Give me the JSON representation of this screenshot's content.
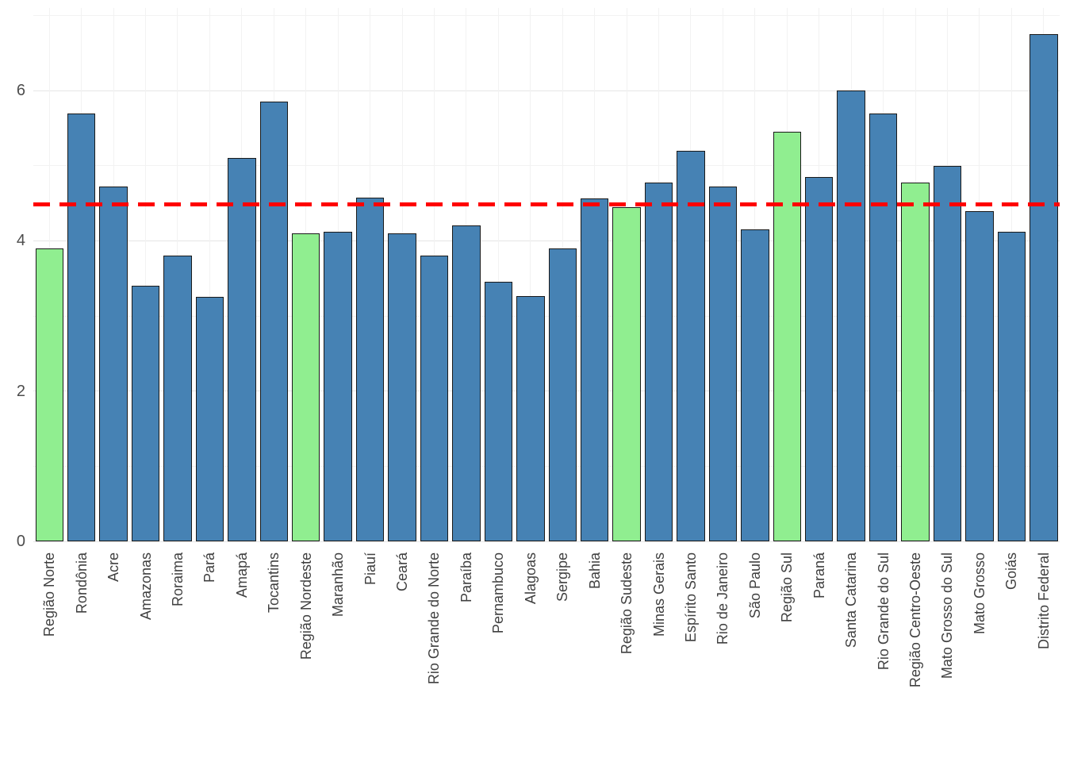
{
  "chart_data": {
    "type": "bar",
    "title": "",
    "xlabel": "",
    "ylabel": "",
    "categories": [
      "Região Norte",
      "Rondônia",
      "Acre",
      "Amazonas",
      "Roraima",
      "Pará",
      "Amapá",
      "Tocantins",
      "Região Nordeste",
      "Maranhão",
      "Piauí",
      "Ceará",
      "Rio Grande do Norte",
      "Paraíba",
      "Pernambuco",
      "Alagoas",
      "Sergipe",
      "Bahia",
      "Região Sudeste",
      "Minas Gerais",
      "Espírito Santo",
      "Rio de Janeiro",
      "São Paulo",
      "Região Sul",
      "Paraná",
      "Santa Catarina",
      "Rio Grande do Sul",
      "Região Centro-Oeste",
      "Mato Grosso do Sul",
      "Mato Grosso",
      "Goiás",
      "Distrito Federal"
    ],
    "values": [
      3.9,
      5.7,
      4.72,
      3.4,
      3.8,
      3.25,
      5.1,
      5.85,
      4.1,
      4.12,
      4.58,
      4.1,
      3.8,
      4.2,
      3.45,
      3.27,
      3.9,
      4.56,
      4.45,
      4.78,
      5.2,
      4.72,
      4.15,
      5.45,
      4.85,
      6.0,
      5.7,
      4.78,
      5.0,
      4.4,
      4.12,
      6.75
    ],
    "groups": [
      "region",
      "state",
      "state",
      "state",
      "state",
      "state",
      "state",
      "state",
      "region",
      "state",
      "state",
      "state",
      "state",
      "state",
      "state",
      "state",
      "state",
      "state",
      "region",
      "state",
      "state",
      "state",
      "state",
      "region",
      "state",
      "state",
      "state",
      "region",
      "state",
      "state",
      "state",
      "state"
    ],
    "colors": {
      "region": "#90EE90",
      "state": "#4682B4",
      "bar_outline": "#1a1a1a",
      "reference_line": "#FF0000",
      "grid_major": "#E6E6E6",
      "grid_minor": "#F2F2F2",
      "background": "#FFFFFF",
      "axis_text": "#4d4d4d"
    },
    "reference_line": {
      "value": 4.48,
      "linetype": "dashed"
    },
    "y_axis": {
      "ticks": [
        0,
        2,
        4,
        6
      ],
      "minor_ticks": [
        1,
        3,
        5,
        7
      ],
      "range": [
        0,
        7.1
      ]
    },
    "x_axis": {
      "label_rotation": 90
    },
    "legend": "none",
    "grid": true
  }
}
